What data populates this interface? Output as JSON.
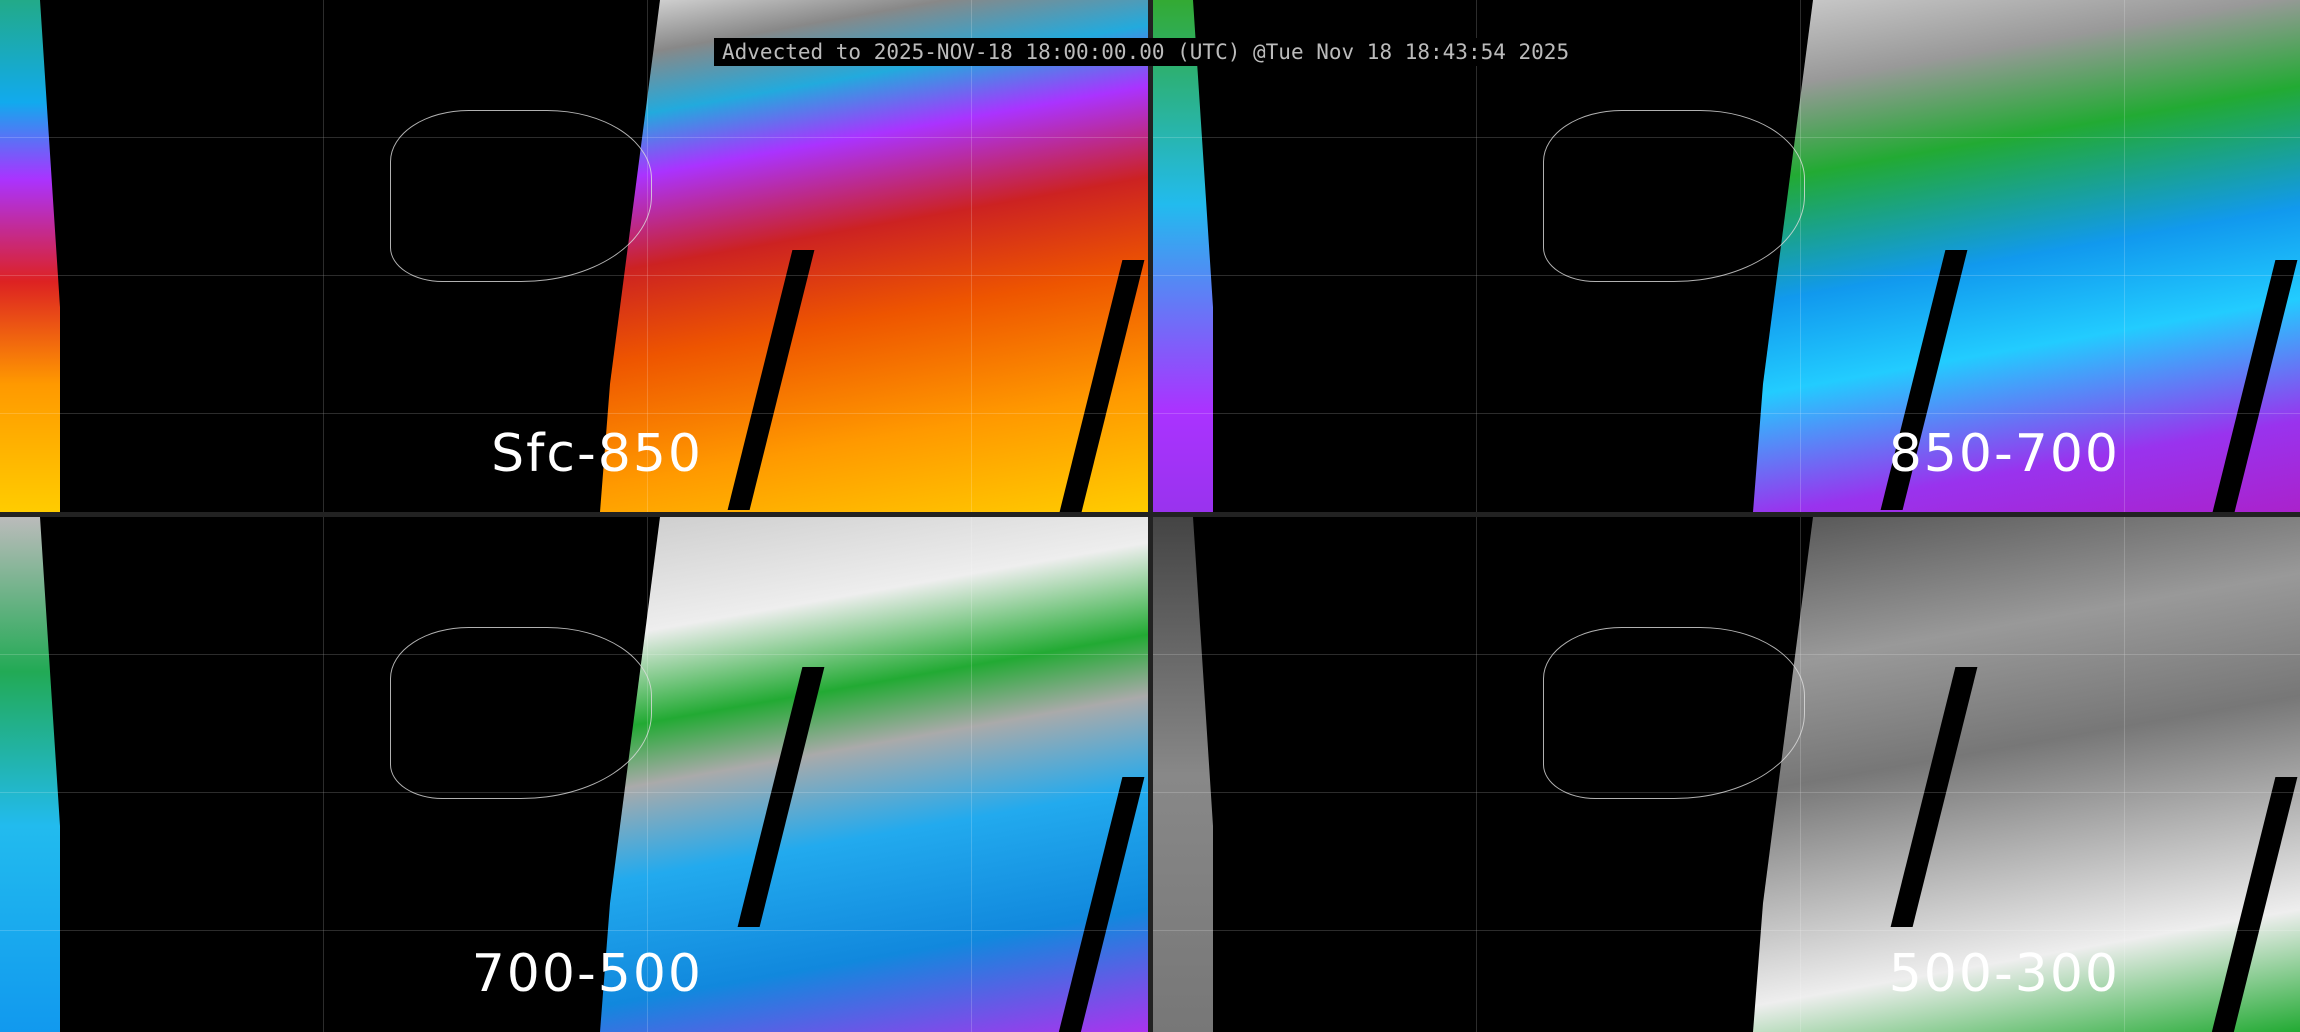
{
  "title": "Advected to 2025-NOV-18 18:00:00.00 (UTC) @Tue Nov 18 18:43:54 2025",
  "panels": [
    {
      "label": "Sfc-850"
    },
    {
      "label": "850-700"
    },
    {
      "label": "700-500"
    },
    {
      "label": "500-300"
    }
  ]
}
